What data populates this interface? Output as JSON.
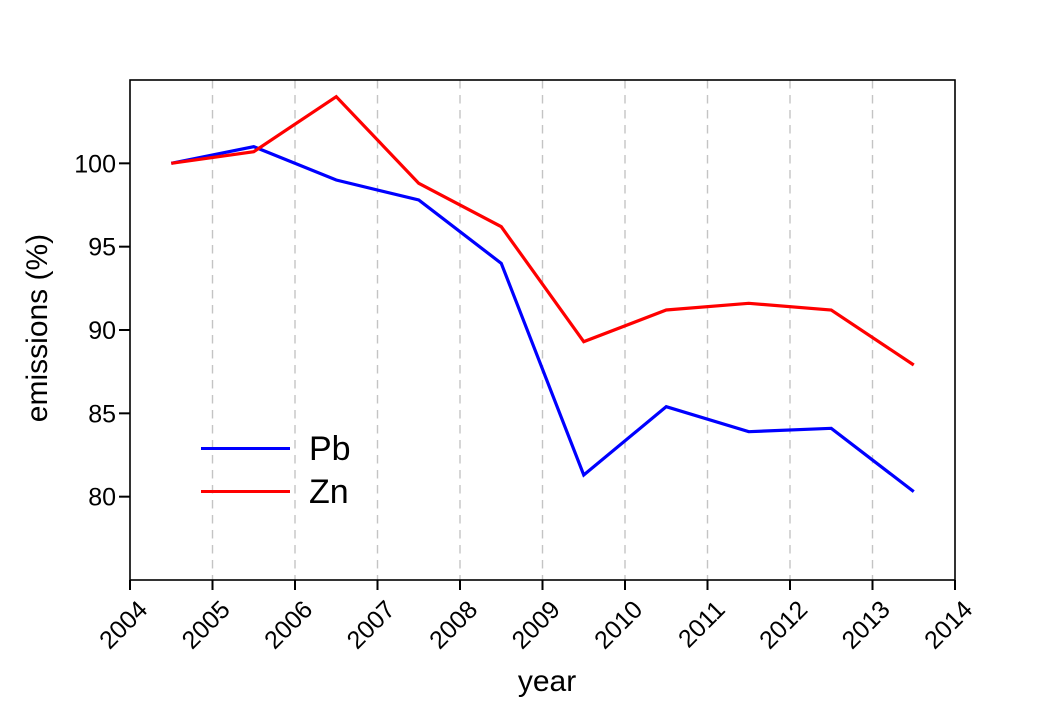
{
  "figure": {
    "background": "#ffffff",
    "axis_color": "#000000",
    "tick_label_color": "#000000"
  },
  "chart_data": {
    "type": "line",
    "title": "",
    "xlabel": "year",
    "ylabel": "emissions (%)",
    "x": [
      2004.5,
      2005.5,
      2006.5,
      2007.5,
      2008.5,
      2009.5,
      2010.5,
      2011.5,
      2012.5,
      2013.5
    ],
    "series": [
      {
        "name": "Pb",
        "color": "#0000ff",
        "values": [
          100,
          101,
          99,
          97.8,
          94,
          81.3,
          85.4,
          83.9,
          84.1,
          80.3
        ]
      },
      {
        "name": "Zn",
        "color": "#ff0000",
        "values": [
          100,
          100.7,
          104,
          98.8,
          96.2,
          89.3,
          91.2,
          91.6,
          91.2,
          87.9
        ]
      }
    ],
    "xlim": [
      2004,
      2014
    ],
    "ylim": [
      75,
      105
    ],
    "x_ticks": [
      2004,
      2005,
      2006,
      2007,
      2008,
      2009,
      2010,
      2011,
      2012,
      2013,
      2014
    ],
    "y_ticks": [
      80,
      85,
      90,
      95,
      100
    ],
    "grid": {
      "x_lines": [
        2005,
        2006,
        2007,
        2008,
        2009,
        2010,
        2011,
        2012,
        2013
      ],
      "color": "#c4c4c4",
      "style": "dashed"
    },
    "legend_position": "inside-lower-left"
  }
}
